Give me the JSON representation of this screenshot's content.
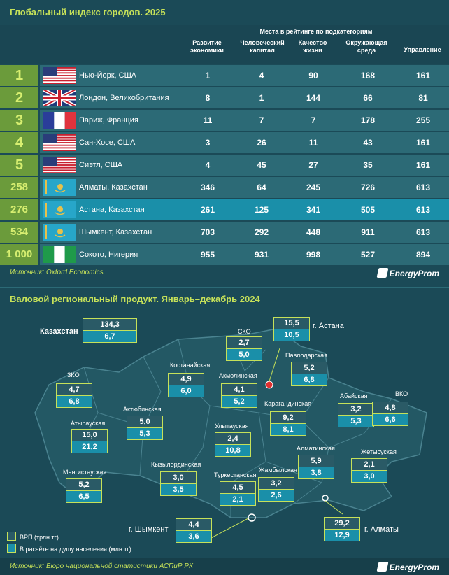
{
  "top": {
    "title": "Глобальный индекс городов. 2025",
    "group_header": "Места в рейтинге по подкатегориям",
    "columns": [
      "Развитие экономики",
      "Человеческий капитал",
      "Качество жизни",
      "Окружающая среда",
      "Управление"
    ],
    "rows": [
      {
        "rank": "1",
        "flag": "us-flag",
        "city": "Нью-Йорк, США",
        "values": [
          "1",
          "4",
          "90",
          "168",
          "161"
        ]
      },
      {
        "rank": "2",
        "flag": "uk-flag",
        "city": "Лондон, Великобритания",
        "values": [
          "8",
          "1",
          "144",
          "66",
          "81"
        ]
      },
      {
        "rank": "3",
        "flag": "fr-flag",
        "city": "Париж, Франция",
        "values": [
          "11",
          "7",
          "7",
          "178",
          "255"
        ]
      },
      {
        "rank": "4",
        "flag": "us-flag",
        "city": "Сан-Хосе, США",
        "values": [
          "3",
          "26",
          "11",
          "43",
          "161"
        ]
      },
      {
        "rank": "5",
        "flag": "us-flag",
        "city": "Сиэтл, США",
        "values": [
          "4",
          "45",
          "27",
          "35",
          "161"
        ]
      },
      {
        "rank": "258",
        "flag": "kz-flag",
        "city": "Алматы, Казахстан",
        "values": [
          "346",
          "64",
          "245",
          "726",
          "613"
        ]
      },
      {
        "rank": "276",
        "flag": "kz-flag",
        "city": "Астана, Казахстан",
        "values": [
          "261",
          "125",
          "341",
          "505",
          "613"
        ],
        "highlight": true
      },
      {
        "rank": "534",
        "flag": "kz-flag",
        "city": "Шымкент, Казахстан",
        "values": [
          "703",
          "292",
          "448",
          "911",
          "613"
        ]
      },
      {
        "rank": "1 000",
        "flag": "ng-flag",
        "city": "Сокото, Нигерия",
        "values": [
          "955",
          "931",
          "998",
          "527",
          "894"
        ]
      }
    ],
    "source": "Источник: Oxford Economics",
    "brand": "EnergyProm"
  },
  "chart_data": [
    {
      "type": "table",
      "title": "Глобальный индекс городов. 2025",
      "columns": [
        "Развитие экономики",
        "Человеческий капитал",
        "Качество жизни",
        "Окружающая среда",
        "Управление"
      ],
      "rows": [
        {
          "rank": 1,
          "city": "Нью-Йорк, США",
          "values": [
            1,
            4,
            90,
            168,
            161
          ]
        },
        {
          "rank": 2,
          "city": "Лондон, Великобритания",
          "values": [
            8,
            1,
            144,
            66,
            81
          ]
        },
        {
          "rank": 3,
          "city": "Париж, Франция",
          "values": [
            11,
            7,
            7,
            178,
            255
          ]
        },
        {
          "rank": 4,
          "city": "Сан-Хосе, США",
          "values": [
            3,
            26,
            11,
            43,
            161
          ]
        },
        {
          "rank": 5,
          "city": "Сиэтл, США",
          "values": [
            4,
            45,
            27,
            35,
            161
          ]
        },
        {
          "rank": 258,
          "city": "Алматы, Казахстан",
          "values": [
            346,
            64,
            245,
            726,
            613
          ]
        },
        {
          "rank": 276,
          "city": "Астана, Казахстан",
          "values": [
            261,
            125,
            341,
            505,
            613
          ]
        },
        {
          "rank": 534,
          "city": "Шымкент, Казахстан",
          "values": [
            703,
            292,
            448,
            911,
            613
          ]
        },
        {
          "rank": 1000,
          "city": "Сокото, Нигерия",
          "values": [
            955,
            931,
            998,
            527,
            894
          ]
        }
      ]
    },
    {
      "type": "table",
      "title": "Валовой региональный продукт. Январь–декабрь 2024",
      "series": [
        {
          "name": "ВРП (трлн тг)"
        },
        {
          "name": "В расчёте на душу населения (млн тг)"
        }
      ],
      "regions": [
        {
          "name": "Казахстан",
          "grp": 134.3,
          "per_capita": 6.7
        },
        {
          "name": "г. Астана",
          "grp": 15.5,
          "per_capita": 10.5
        },
        {
          "name": "СКО",
          "grp": 2.7,
          "per_capita": 5.0
        },
        {
          "name": "Павлодарская",
          "grp": 5.2,
          "per_capita": 6.8
        },
        {
          "name": "Костанайская",
          "grp": 4.9,
          "per_capita": 6.0
        },
        {
          "name": "Акмолинская",
          "grp": 4.1,
          "per_capita": 5.2
        },
        {
          "name": "ЗКО",
          "grp": 4.7,
          "per_capita": 6.8
        },
        {
          "name": "Актюбинская",
          "grp": 5.0,
          "per_capita": 5.3
        },
        {
          "name": "Карагандинская",
          "grp": 9.2,
          "per_capita": 8.1
        },
        {
          "name": "Абайская",
          "grp": 3.2,
          "per_capita": 5.3
        },
        {
          "name": "ВКО",
          "grp": 4.8,
          "per_capita": 6.6
        },
        {
          "name": "Атырауская",
          "grp": 15.0,
          "per_capita": 21.2
        },
        {
          "name": "Улытауская",
          "grp": 2.4,
          "per_capita": 10.8
        },
        {
          "name": "Кызылординская",
          "grp": 3.0,
          "per_capita": 3.5
        },
        {
          "name": "Алматинская",
          "grp": 5.9,
          "per_capita": 3.8
        },
        {
          "name": "Жетысуская",
          "grp": 2.1,
          "per_capita": 3.0
        },
        {
          "name": "Мангистауская",
          "grp": 5.2,
          "per_capita": 6.5
        },
        {
          "name": "Туркестанская",
          "grp": 4.5,
          "per_capita": 2.1
        },
        {
          "name": "Жамбылская",
          "grp": 3.2,
          "per_capita": 2.6
        },
        {
          "name": "г. Шымкент",
          "grp": 4.4,
          "per_capita": 3.6
        },
        {
          "name": "г. Алматы",
          "grp": 29.2,
          "per_capita": 12.9
        }
      ]
    }
  ],
  "bottom": {
    "title": "Валовой региональный продукт. Январь–декабрь 2024",
    "legend": [
      "ВРП (трлн тг)",
      "В расчёте на душу населения (млн тг)"
    ],
    "source": "Источник: Бюро национальной статистики АСПиР РК",
    "brand": "EnergyProm",
    "labels": [
      {
        "name": "Казахстан",
        "grp": "134,3",
        "pc": "6,7"
      },
      {
        "name": "г. Астана",
        "grp": "15,5",
        "pc": "10,5"
      },
      {
        "name": "СКО",
        "grp": "2,7",
        "pc": "5,0"
      },
      {
        "name": "Павлодарская",
        "grp": "5,2",
        "pc": "6,8"
      },
      {
        "name": "Костанайская",
        "grp": "4,9",
        "pc": "6,0"
      },
      {
        "name": "Акмолинская",
        "grp": "4,1",
        "pc": "5,2"
      },
      {
        "name": "ЗКО",
        "grp": "4,7",
        "pc": "6,8"
      },
      {
        "name": "Актюбинская",
        "grp": "5,0",
        "pc": "5,3"
      },
      {
        "name": "Карагандинская",
        "grp": "9,2",
        "pc": "8,1"
      },
      {
        "name": "Абайская",
        "grp": "3,2",
        "pc": "5,3"
      },
      {
        "name": "ВКО",
        "grp": "4,8",
        "pc": "6,6"
      },
      {
        "name": "Атырауская",
        "grp": "15,0",
        "pc": "21,2"
      },
      {
        "name": "Улытауская",
        "grp": "2,4",
        "pc": "10,8"
      },
      {
        "name": "Кызылординская",
        "grp": "3,0",
        "pc": "3,5"
      },
      {
        "name": "Алматинская",
        "grp": "5,9",
        "pc": "3,8"
      },
      {
        "name": "Жетысуская",
        "grp": "2,1",
        "pc": "3,0"
      },
      {
        "name": "Мангистауская",
        "grp": "5,2",
        "pc": "6,5"
      },
      {
        "name": "Туркестанская",
        "grp": "4,5",
        "pc": "2,1"
      },
      {
        "name": "Жамбылская",
        "grp": "3,2",
        "pc": "2,6"
      },
      {
        "name": "г. Шымкент",
        "grp": "4,4",
        "pc": "3,6"
      },
      {
        "name": "г. Алматы",
        "grp": "29,2",
        "pc": "12,9"
      }
    ]
  },
  "colors": {
    "background": "#1b4a57",
    "accent": "#c6e159",
    "row": "#2c6a76",
    "highlight": "#1a8fa9",
    "rank_bg": "#6b9b3b",
    "map": "#235864"
  }
}
